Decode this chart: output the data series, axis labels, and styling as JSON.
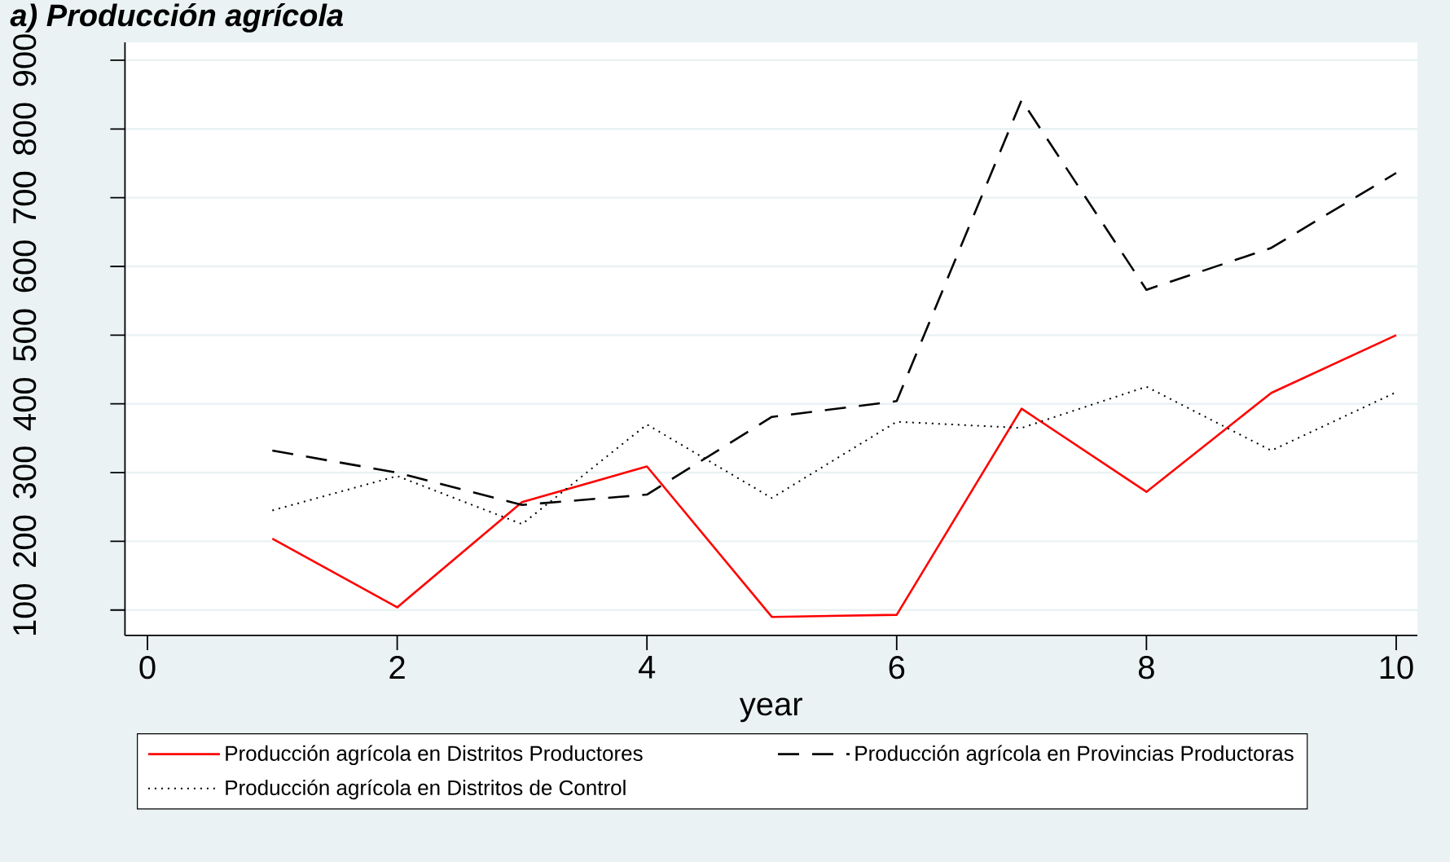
{
  "chart_data": {
    "type": "line",
    "title": "a) Producción agrícola",
    "xlabel": "year",
    "x": [
      1,
      2,
      3,
      4,
      5,
      6,
      7,
      8,
      9,
      10
    ],
    "xlim": [
      -0.18,
      10.17
    ],
    "ylim": [
      63,
      926
    ],
    "xticks": [
      0,
      2,
      4,
      6,
      8,
      10
    ],
    "yticks": [
      100,
      200,
      300,
      400,
      500,
      600,
      700,
      800,
      900
    ],
    "grid": "y",
    "legend": "bottom",
    "series": [
      {
        "name": "Producción agrícola en Distritos Productores",
        "color": "#ff0000",
        "line_style": "solid",
        "values": [
          204,
          104,
          257,
          309,
          90,
          93,
          393,
          272,
          416,
          500
        ]
      },
      {
        "name": "Producción agrícola en Provincias Productoras",
        "color": "#000000",
        "line_style": "dashed",
        "values": [
          332,
          300,
          253,
          268,
          381,
          404,
          842,
          566,
          627,
          736
        ]
      },
      {
        "name": "Producción agrícola en Distritos de Control",
        "color": "#000000",
        "line_style": "dotted",
        "values": [
          245,
          295,
          225,
          370,
          263,
          374,
          365,
          425,
          332,
          417
        ]
      }
    ]
  }
}
